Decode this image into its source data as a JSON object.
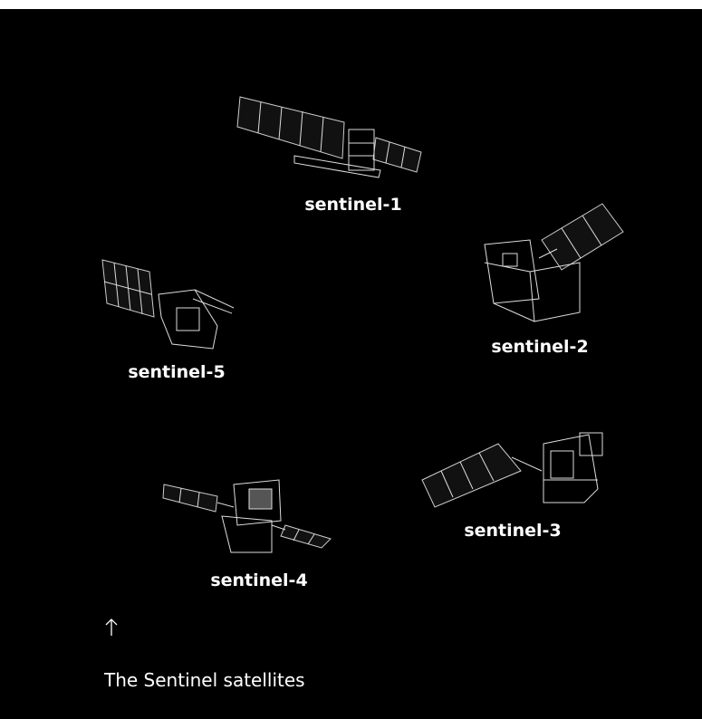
{
  "image": {
    "labels": [
      "sentinel-1",
      "sentinel-2",
      "sentinel-3",
      "sentinel-4",
      "sentinel-5"
    ]
  },
  "caption": {
    "text": "The Sentinel satellites"
  }
}
